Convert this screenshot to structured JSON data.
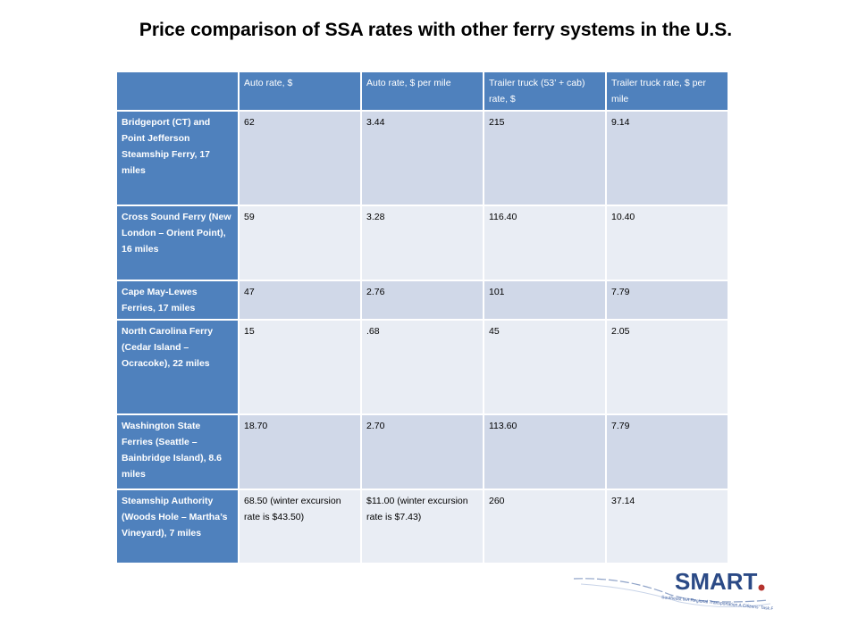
{
  "title": "Price comparison of SSA rates with other ferry systems in the U.S.",
  "table": {
    "headers": [
      "",
      "Auto rate, $",
      "Auto rate, $ per mile",
      "Trailer truck (53’ + cab) rate, $",
      "Trailer truck rate, $ per mile"
    ],
    "rows": [
      {
        "name": "Bridgeport (CT) and Point Jefferson Steamship Ferry, 17 miles",
        "cells": [
          "62",
          "3.44",
          "215",
          "9.14"
        ]
      },
      {
        "name": "Cross Sound Ferry (New London – Orient Point), 16 miles",
        "cells": [
          "59",
          "3.28",
          "116.40",
          "10.40"
        ]
      },
      {
        "name": "Cape May-Lewes Ferries, 17 miles",
        "cells": [
          "47",
          "2.76",
          "101",
          "7.79"
        ]
      },
      {
        "name": "North Carolina Ferry (Cedar Island – Ocracoke), 22 miles",
        "cells": [
          "15",
          ".68",
          "45",
          "2.05"
        ]
      },
      {
        "name": "Washington State Ferries (Seattle – Bainbridge Island), 8.6 miles",
        "cells": [
          "18.70",
          "2.70",
          "113.60",
          "7.79"
        ]
      },
      {
        "name": "Steamship Authority (Woods Hole – Martha’s Vineyard), 7 miles",
        "cells": [
          "68.50 (winter excursion rate is $43.50)",
          "$11.00 (winter excursion rate is $7.43)",
          "260",
          "37.14"
        ]
      }
    ]
  },
  "logo": {
    "text": "SMART",
    "tagline": "Southeast MA Regional Transportation A Citizens' Task Force"
  },
  "colors": {
    "header": "#4f81bd",
    "row_dark": "#d0d8e8",
    "row_light": "#e9edf4"
  }
}
